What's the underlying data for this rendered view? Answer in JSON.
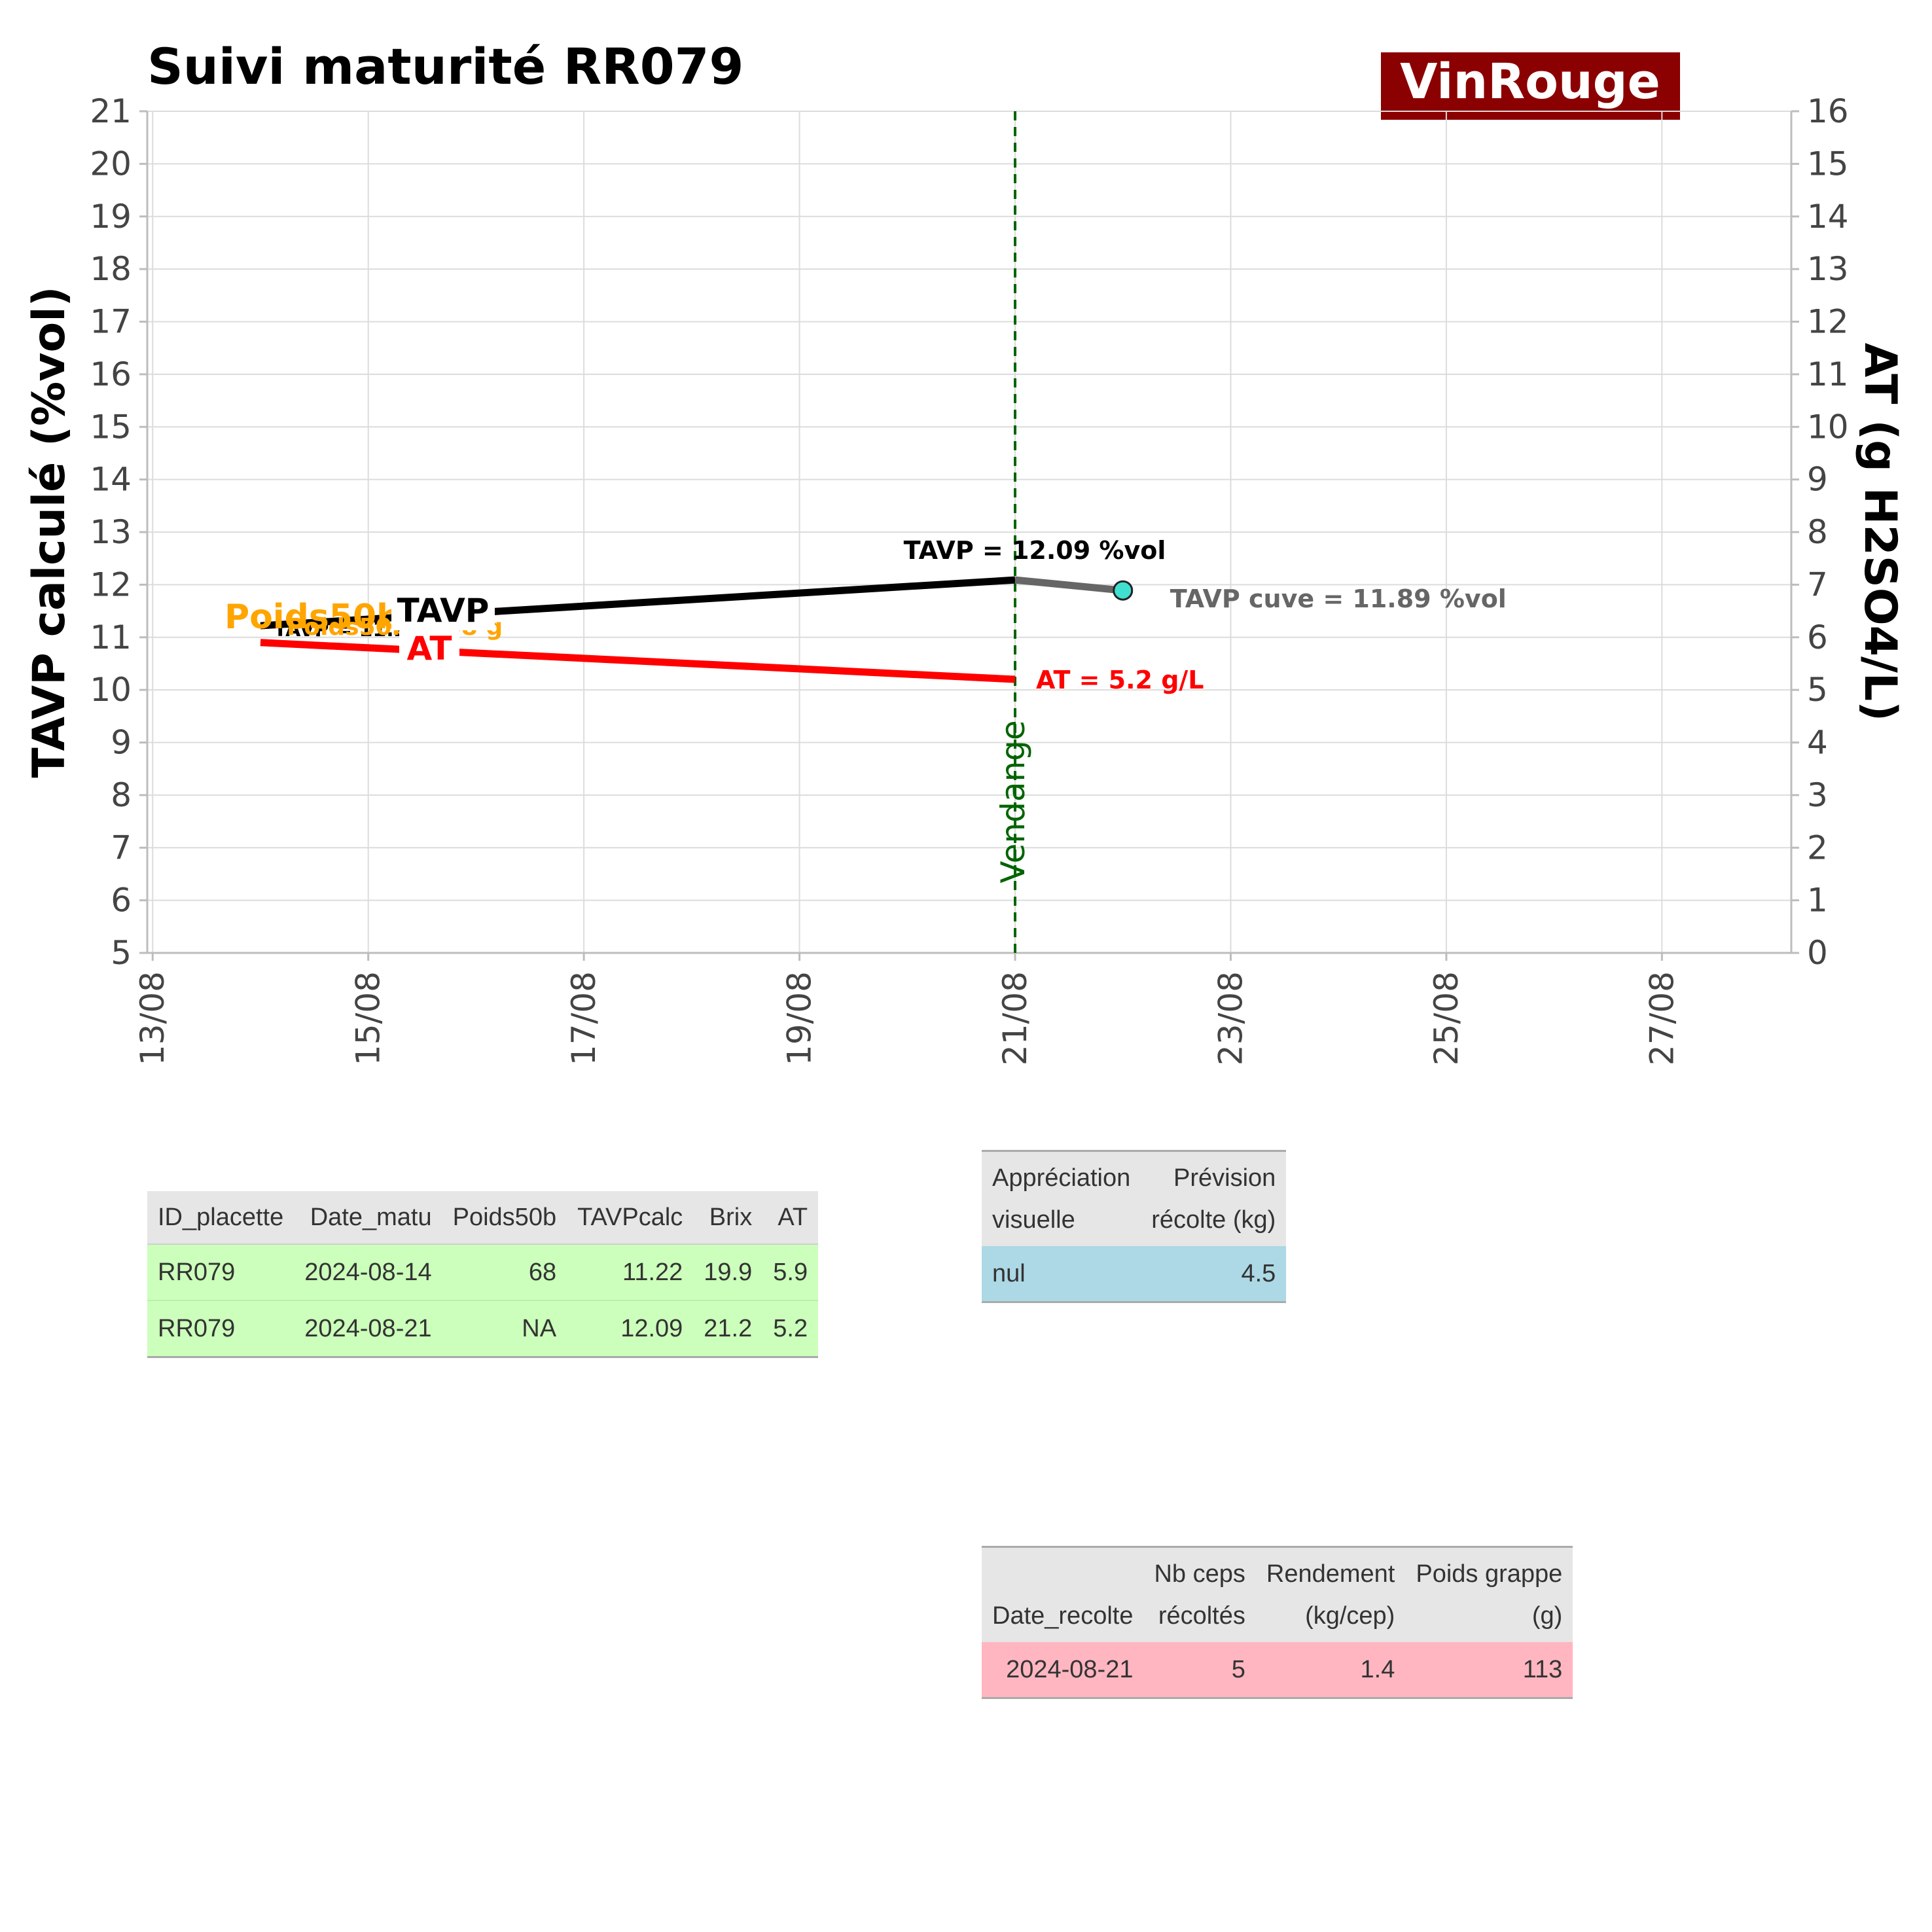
{
  "title": "Suivi maturité  RR079",
  "brand": {
    "label": "VinRouge",
    "bg_color": "#8b0000",
    "text_color": "#ffffff"
  },
  "chart_data": {
    "type": "line",
    "x_axis": {
      "type": "date",
      "range": [
        "2024-08-13",
        "2024-08-28"
      ],
      "ticks": [
        "2024-08-13",
        "2024-08-15",
        "2024-08-17",
        "2024-08-19",
        "2024-08-21",
        "2024-08-23",
        "2024-08-25",
        "2024-08-27"
      ],
      "tick_labels": [
        "13/08",
        "15/08",
        "17/08",
        "19/08",
        "21/08",
        "23/08",
        "25/08",
        "27/08"
      ]
    },
    "y_left": {
      "label": "TAVP calculé (%vol)",
      "range": [
        5,
        21
      ],
      "ticks": [
        5,
        6,
        7,
        8,
        9,
        10,
        11,
        12,
        13,
        14,
        15,
        16,
        17,
        18,
        19,
        20,
        21
      ]
    },
    "y_right": {
      "label": "AT (g H2SO4/L)",
      "range": [
        0,
        16
      ],
      "ticks": [
        0,
        1,
        2,
        3,
        4,
        5,
        6,
        7,
        8,
        9,
        10,
        11,
        12,
        13,
        14,
        15,
        16
      ]
    },
    "grid": true,
    "series": [
      {
        "name": "TAVP",
        "axis": "left",
        "color": "#000000",
        "points": [
          {
            "x": "2024-08-14",
            "y": 11.22
          },
          {
            "x": "2024-08-21",
            "y": 12.09
          }
        ]
      },
      {
        "name": "AT",
        "axis": "right",
        "color": "#ff0000",
        "points": [
          {
            "x": "2024-08-14",
            "y": 5.9
          },
          {
            "x": "2024-08-21",
            "y": 5.2
          }
        ]
      },
      {
        "name": "TAVP cuve",
        "axis": "left",
        "color": "#666666",
        "points": [
          {
            "x": "2024-08-21",
            "y": 12.09
          },
          {
            "x": "2024-08-22",
            "y": 11.89
          }
        ]
      }
    ],
    "markers": [
      {
        "x": "2024-08-22",
        "y": 11.89,
        "color": "#40e0d0"
      }
    ],
    "vline": {
      "x": "2024-08-21",
      "label": "Vendange",
      "color": "#006400"
    },
    "annotations": {
      "tavp_end": "TAVP = 12.09 %vol",
      "tavp_cuve": "TAVP cuve = 11.89 %vol",
      "at_end": "AT = 5.2 g/L",
      "poids_label": "Poids50b",
      "poids_value": "Poids50b = 68 g",
      "tavp_label": "TAVP",
      "tavp_start": "TAVP = 11.22",
      "at_label": "AT"
    }
  },
  "table_matu": {
    "headers": [
      "ID_placette",
      "Date_matu",
      "Poids50b",
      "TAVPcalc",
      "Brix",
      "AT"
    ],
    "rows": [
      [
        "RR079",
        "2024-08-14",
        "68",
        "11.22",
        "19.9",
        "5.9"
      ],
      [
        "RR079",
        "2024-08-21",
        "NA",
        "12.09",
        "21.2",
        "5.2"
      ]
    ],
    "row_color": "#ccffbb"
  },
  "table_appreciation": {
    "headers": [
      [
        "Appréciation",
        "visuelle"
      ],
      [
        "Prévision",
        "récolte (kg)"
      ]
    ],
    "rows": [
      [
        "nul",
        "4.5"
      ]
    ],
    "row_color": "#add8e6"
  },
  "table_recolte": {
    "headers": [
      [
        "",
        "Date_recolte"
      ],
      [
        "Nb ceps",
        "récoltés"
      ],
      [
        "Rendement",
        "(kg/cep)"
      ],
      [
        "Poids grappe",
        "(g)"
      ]
    ],
    "rows": [
      [
        "2024-08-21",
        "5",
        "1.4",
        "113"
      ]
    ],
    "row_color": "#ffb6c1"
  }
}
